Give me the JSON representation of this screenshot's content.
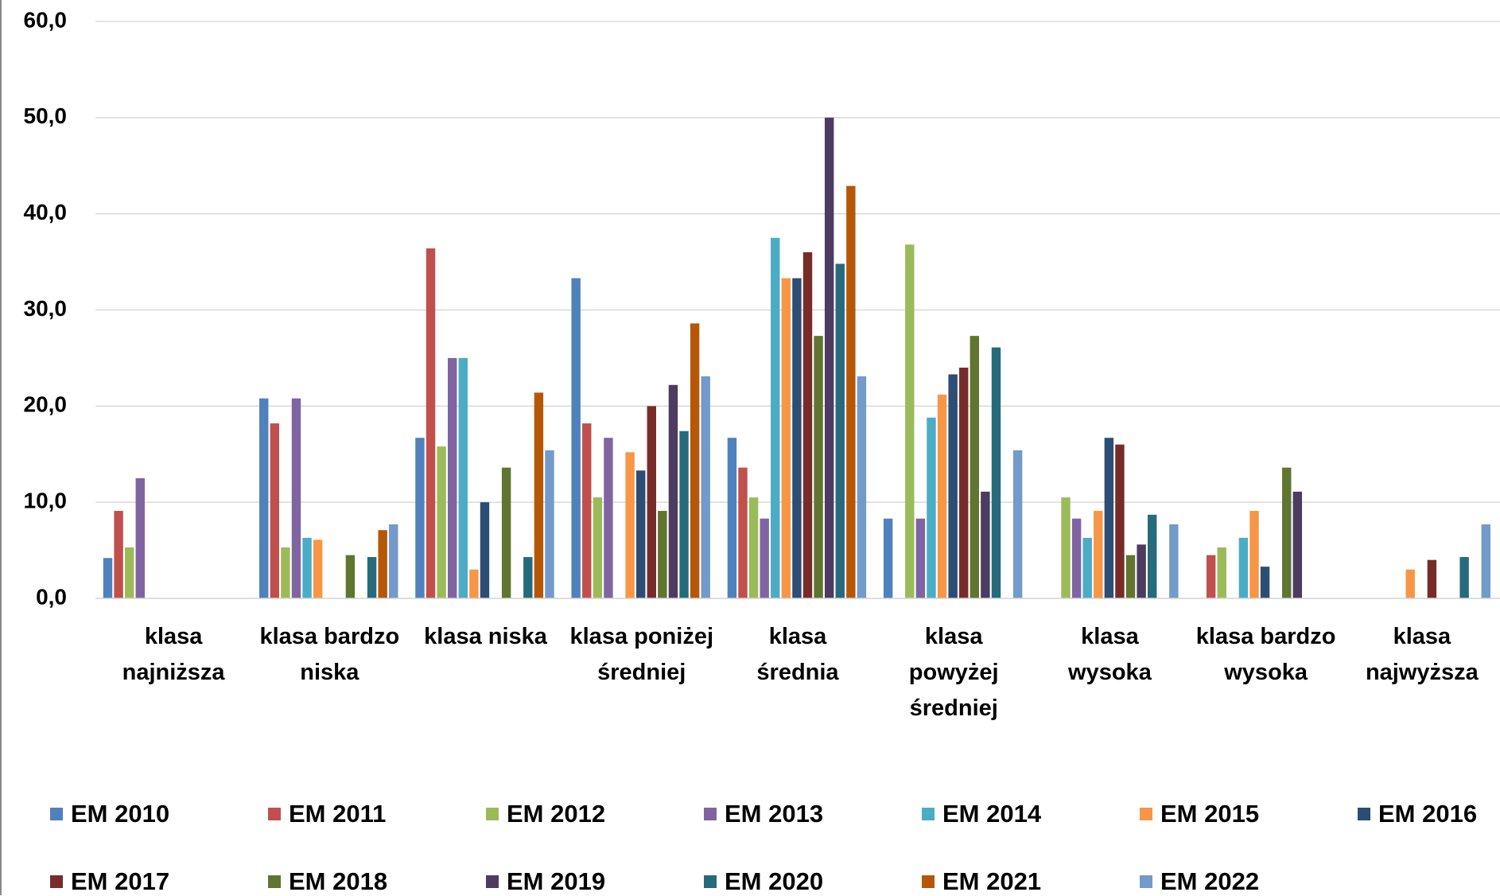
{
  "chart_data": {
    "type": "bar",
    "categories": [
      "klasa najniższa",
      "klasa bardzo niska",
      "klasa niska",
      "klasa poniżej średniej",
      "klasa średnia",
      "klasa powyżej średniej",
      "klasa wysoka",
      "klasa bardzo wysoka",
      "klasa najwyższa"
    ],
    "series": [
      {
        "name": "EM 2010",
        "color": "#4f81bd",
        "values": [
          4.2,
          20.8,
          16.7,
          33.3,
          16.7,
          8.3,
          null,
          null,
          null
        ]
      },
      {
        "name": "EM 2011",
        "color": "#c0504d",
        "values": [
          9.1,
          18.2,
          36.4,
          18.2,
          13.6,
          null,
          null,
          4.5,
          null
        ]
      },
      {
        "name": "EM 2012",
        "color": "#9bbb59",
        "values": [
          5.3,
          5.3,
          15.8,
          10.5,
          10.5,
          36.8,
          10.5,
          5.3,
          null
        ]
      },
      {
        "name": "EM 2013",
        "color": "#8064a2",
        "values": [
          12.5,
          20.8,
          25.0,
          16.7,
          8.3,
          8.3,
          8.3,
          null,
          null
        ]
      },
      {
        "name": "EM 2014",
        "color": "#4bacc6",
        "values": [
          null,
          6.3,
          25.0,
          null,
          37.5,
          18.8,
          6.3,
          6.3,
          null
        ]
      },
      {
        "name": "EM 2015",
        "color": "#f79646",
        "values": [
          null,
          6.1,
          3.0,
          15.2,
          33.3,
          21.2,
          9.1,
          9.1,
          3.0
        ]
      },
      {
        "name": "EM 2016",
        "color": "#2c4d75",
        "values": [
          null,
          null,
          10.0,
          13.3,
          33.3,
          23.3,
          16.7,
          3.3,
          null
        ]
      },
      {
        "name": "EM 2017",
        "color": "#772c2a",
        "values": [
          null,
          null,
          null,
          20.0,
          36.0,
          24.0,
          16.0,
          null,
          4.0
        ]
      },
      {
        "name": "EM 2018",
        "color": "#5f7530",
        "values": [
          null,
          4.5,
          13.6,
          9.1,
          27.3,
          27.3,
          4.5,
          13.6,
          null
        ]
      },
      {
        "name": "EM 2019",
        "color": "#4d3b62",
        "values": [
          null,
          null,
          null,
          22.2,
          50.0,
          11.1,
          5.6,
          11.1,
          null
        ]
      },
      {
        "name": "EM 2020",
        "color": "#276a7c",
        "values": [
          null,
          4.3,
          4.3,
          17.4,
          34.8,
          26.1,
          8.7,
          null,
          4.3
        ]
      },
      {
        "name": "EM 2021",
        "color": "#b65708",
        "values": [
          null,
          7.1,
          21.4,
          28.6,
          42.9,
          null,
          null,
          null,
          null
        ]
      },
      {
        "name": "EM 2022",
        "color": "#729aca",
        "values": [
          null,
          7.7,
          15.4,
          23.1,
          23.1,
          15.4,
          7.7,
          null,
          7.7
        ]
      }
    ],
    "ylim": [
      0,
      60
    ],
    "yticks": [
      {
        "value": 0,
        "label": "0,0"
      },
      {
        "value": 10,
        "label": "10,0"
      },
      {
        "value": 20,
        "label": "20,0"
      },
      {
        "value": 30,
        "label": "30,0"
      },
      {
        "value": 40,
        "label": "40,0"
      },
      {
        "value": 50,
        "label": "50,0"
      },
      {
        "value": 60,
        "label": "60,0"
      }
    ],
    "grid": true
  }
}
